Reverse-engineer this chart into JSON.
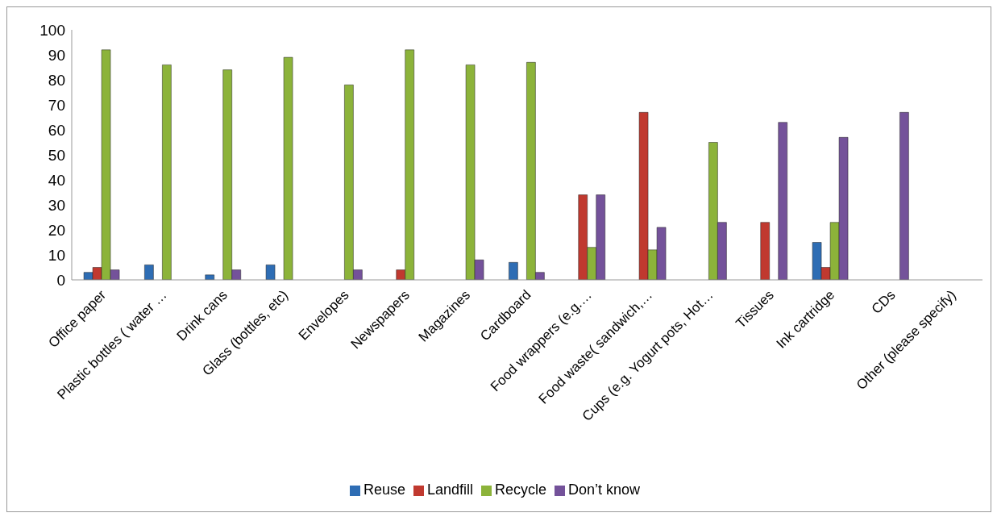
{
  "chart_data": {
    "type": "bar",
    "categories": [
      "Office paper",
      "Plastic bottles ( water …",
      "Drink cans",
      "Glass (bottles, etc)",
      "Envelopes",
      "Newspapers",
      "Magazines",
      "Cardboard",
      "Food wrappers (e.g.…",
      "Food waste( sandwich,…",
      "Cups (e.g. Yogurt pots, Hot…",
      "Tissues",
      "Ink cartridge",
      "CDs",
      "Other (please specify)"
    ],
    "series": [
      {
        "name": "Reuse",
        "color": "#2e6db4",
        "values": [
          3,
          6,
          2,
          6,
          null,
          null,
          null,
          7,
          null,
          null,
          null,
          null,
          15,
          null,
          null
        ]
      },
      {
        "name": "Landfill",
        "color": "#c0392f",
        "values": [
          5,
          null,
          null,
          null,
          null,
          4,
          null,
          null,
          34,
          67,
          null,
          23,
          5,
          null,
          null
        ]
      },
      {
        "name": "Recycle",
        "color": "#8cb33a",
        "values": [
          92,
          86,
          84,
          89,
          78,
          92,
          86,
          87,
          13,
          12,
          55,
          null,
          23,
          null,
          null
        ]
      },
      {
        "name": "Don’t know",
        "color": "#74529a",
        "values": [
          4,
          null,
          4,
          null,
          4,
          null,
          8,
          3,
          34,
          21,
          23,
          63,
          57,
          67,
          null
        ]
      }
    ],
    "ylim": [
      0,
      100
    ],
    "yticks": [
      0,
      10,
      20,
      30,
      40,
      50,
      60,
      70,
      80,
      90,
      100
    ],
    "grid": false,
    "legend": "bottom"
  }
}
